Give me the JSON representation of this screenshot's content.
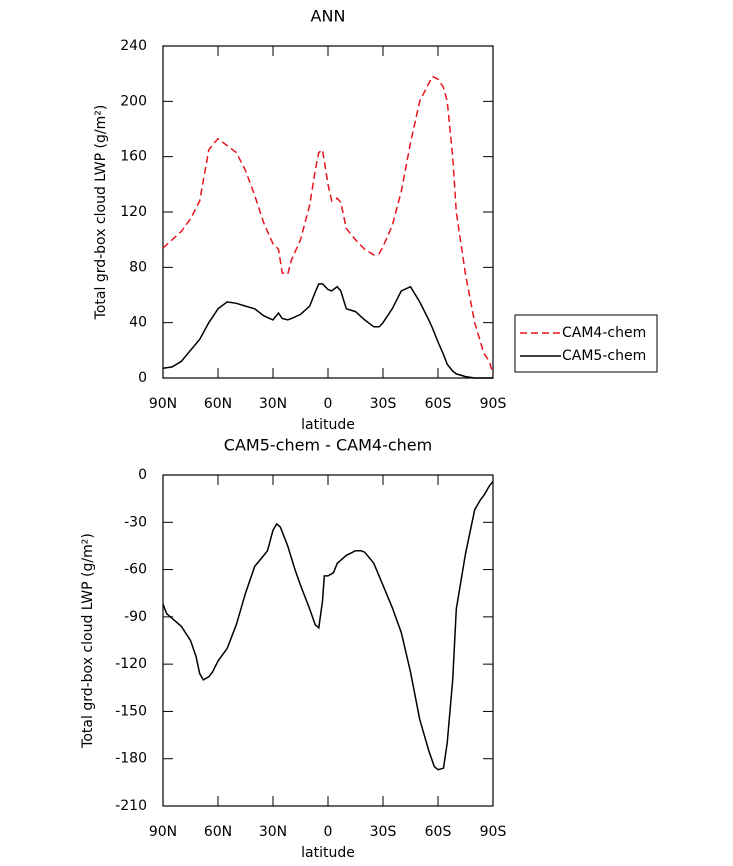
{
  "chart_data": [
    {
      "type": "line",
      "title": "ANN",
      "xlabel": "latitude",
      "ylabel": "Total grd-box cloud LWP (g/m²)",
      "x": [
        90,
        85,
        80,
        75,
        70,
        65,
        62,
        60,
        55,
        50,
        45,
        40,
        35,
        30,
        27,
        25,
        22,
        20,
        15,
        10,
        7,
        5,
        3,
        0,
        -2,
        -5,
        -7,
        -10,
        -15,
        -20,
        -25,
        -28,
        -30,
        -35,
        -40,
        -45,
        -50,
        -55,
        -57,
        -60,
        -63,
        -65,
        -68,
        -70,
        -75,
        -80,
        -85,
        -88,
        -90
      ],
      "xlim": [
        90,
        -90
      ],
      "xticks": [
        {
          "value": 90,
          "label": "90N"
        },
        {
          "value": 60,
          "label": "60N"
        },
        {
          "value": 30,
          "label": "30N"
        },
        0,
        {
          "value": -30,
          "label": "30S"
        },
        {
          "value": -60,
          "label": "60S"
        },
        {
          "value": -90,
          "label": "90S"
        }
      ],
      "ylim": [
        0,
        240
      ],
      "yticks": [
        0,
        40,
        80,
        120,
        160,
        200,
        240
      ],
      "legend": "right",
      "series": [
        {
          "name": "CAM4-chem",
          "color": "#e8141e",
          "dash": true,
          "values": [
            94,
            100,
            106,
            115,
            128,
            165,
            170,
            173,
            168,
            163,
            150,
            132,
            112,
            97,
            93,
            76,
            75,
            85,
            100,
            125,
            150,
            163,
            165,
            140,
            128,
            130,
            127,
            108,
            100,
            93,
            89,
            90,
            95,
            110,
            135,
            170,
            200,
            213,
            218,
            216,
            210,
            200,
            160,
            120,
            75,
            40,
            18,
            12,
            3
          ]
        },
        {
          "name": "CAM5-chem",
          "color": "#000000",
          "dash": false,
          "values": [
            7,
            8,
            12,
            20,
            28,
            40,
            46,
            50,
            55,
            54,
            52,
            50,
            45,
            42,
            47,
            43,
            42,
            43,
            46,
            52,
            62,
            68,
            68,
            64,
            63,
            66,
            63,
            50,
            48,
            42,
            37,
            37,
            40,
            50,
            63,
            66,
            55,
            42,
            36,
            26,
            17,
            10,
            5,
            3,
            1,
            0,
            0,
            0,
            0
          ]
        }
      ]
    },
    {
      "type": "line",
      "title": "CAM5-chem - CAM4-chem",
      "xlabel": "latitude",
      "ylabel": "Total grd-box cloud LWP (g/m²)",
      "x": [
        90,
        88,
        85,
        80,
        75,
        72,
        70,
        68,
        65,
        63,
        60,
        55,
        50,
        45,
        40,
        35,
        33,
        30,
        28,
        26,
        22,
        18,
        15,
        10,
        7,
        5,
        3,
        2,
        0,
        -3,
        -5,
        -10,
        -15,
        -18,
        -20,
        -25,
        -30,
        -35,
        -40,
        -45,
        -50,
        -55,
        -58,
        -60,
        -63,
        -65,
        -68,
        -70,
        -75,
        -80,
        -83,
        -85,
        -88,
        -90
      ],
      "xlim": [
        90,
        -90
      ],
      "xticks": [
        {
          "value": 90,
          "label": "90N"
        },
        {
          "value": 60,
          "label": "60N"
        },
        {
          "value": 30,
          "label": "30N"
        },
        0,
        {
          "value": -30,
          "label": "30S"
        },
        {
          "value": -60,
          "label": "60S"
        },
        {
          "value": -90,
          "label": "90S"
        }
      ],
      "ylim": [
        -210,
        0
      ],
      "yticks": [
        -210,
        -180,
        -150,
        -120,
        -90,
        -60,
        -30,
        0
      ],
      "series": [
        {
          "color": "#000000",
          "dash": false,
          "values": [
            -82,
            -88,
            -91,
            -96,
            -105,
            -115,
            -126,
            -130,
            -128,
            -125,
            -118,
            -110,
            -95,
            -75,
            -58,
            -51,
            -48,
            -35,
            -31,
            -33,
            -45,
            -60,
            -70,
            -85,
            -95,
            -97,
            -80,
            -64,
            -64,
            -62,
            -56,
            -51,
            -48,
            -48,
            -49,
            -56,
            -70,
            -84,
            -100,
            -125,
            -155,
            -175,
            -185,
            -187,
            -186,
            -170,
            -130,
            -85,
            -50,
            -22,
            -16,
            -13,
            -7,
            -4
          ]
        }
      ]
    }
  ]
}
